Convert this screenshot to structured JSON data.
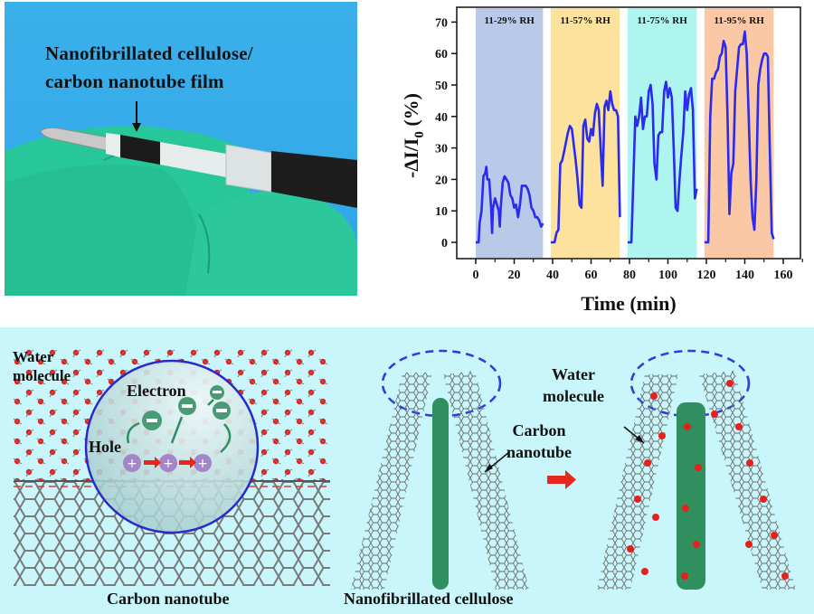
{
  "photo": {
    "label_line1": "Nanofibrillated cellulose/",
    "label_line2": "carbon nanotube film",
    "arrow_icon": "down-arrow-icon"
  },
  "chart_data": {
    "type": "line",
    "title": "",
    "xlabel": "Time (min)",
    "ylabel": "-ΔI/I0 (%)",
    "ylabel_main": "-ΔI/I",
    "ylabel_sub": "0",
    "ylabel_unit": " (%)",
    "xlim": [
      -5,
      165
    ],
    "ylim": [
      -5,
      73
    ],
    "xticks": [
      0,
      20,
      40,
      60,
      80,
      100,
      120,
      140,
      160
    ],
    "yticks": [
      0,
      10,
      20,
      30,
      40,
      50,
      60,
      70
    ],
    "grid": false,
    "line_color": "#2a2af0",
    "bands": [
      {
        "label": "11-29% RH",
        "x0": 0,
        "x1": 35,
        "color": "#b9c9e8"
      },
      {
        "label": "11-57% RH",
        "x0": 39,
        "x1": 75,
        "color": "#fde29d"
      },
      {
        "label": "11-75% RH",
        "x0": 79,
        "x1": 115,
        "color": "#aef4ef"
      },
      {
        "label": "11-95% RH",
        "x0": 119,
        "x1": 155,
        "color": "#fbc8a5"
      }
    ],
    "series": [
      {
        "name": "11-29% RH",
        "x": [
          0,
          1.5,
          2,
          3,
          4,
          5,
          5.5,
          6,
          7,
          8,
          8.5,
          9,
          10,
          11,
          12,
          12.5,
          13,
          14,
          15,
          16,
          17,
          18,
          19,
          20,
          21,
          22,
          23,
          24,
          25,
          26,
          27,
          28,
          29,
          30,
          31,
          32,
          33,
          34,
          35
        ],
        "y": [
          0,
          0,
          6,
          10,
          21,
          22,
          24,
          20,
          20,
          11,
          3,
          11,
          14,
          12,
          10,
          5,
          11,
          19,
          21,
          20,
          19,
          15,
          14,
          11,
          12,
          8,
          12,
          18,
          18,
          18,
          17,
          15,
          11,
          10,
          8,
          8,
          7,
          5,
          6
        ]
      },
      {
        "name": "11-57% RH",
        "x": [
          39,
          41,
          42,
          43,
          44,
          45,
          46,
          47,
          48,
          49,
          50,
          51,
          52,
          53,
          54,
          55,
          56,
          57,
          58,
          59,
          60,
          61,
          62,
          63,
          64,
          65,
          66,
          67,
          68,
          69,
          70,
          71,
          72,
          73,
          74,
          75
        ],
        "y": [
          0,
          0,
          3,
          4,
          25,
          26,
          29,
          32,
          35,
          37,
          36,
          31,
          26,
          20,
          12,
          11,
          37,
          39,
          33,
          32,
          36,
          34,
          41,
          44,
          42,
          30,
          18,
          43,
          45,
          42,
          48,
          44,
          42,
          42,
          40,
          8
        ]
      },
      {
        "name": "11-75% RH",
        "x": [
          79,
          81,
          82,
          83,
          84,
          85,
          86,
          87,
          88,
          89,
          90,
          91,
          92,
          93,
          94,
          95,
          96,
          97,
          98,
          99,
          100,
          101,
          102,
          103,
          104,
          105,
          106,
          107,
          108,
          109,
          110,
          111,
          112,
          113,
          114,
          115
        ],
        "y": [
          0,
          0,
          20,
          40,
          37,
          40,
          46,
          36,
          40,
          40,
          48,
          50,
          44,
          25,
          20,
          34,
          35,
          35,
          48,
          51,
          46,
          49,
          46,
          30,
          11,
          10,
          20,
          28,
          35,
          48,
          42,
          47,
          49,
          42,
          14,
          17
        ]
      },
      {
        "name": "11-95% RH",
        "x": [
          119,
          121,
          122,
          123,
          124,
          125,
          126,
          127,
          128,
          129,
          130,
          131,
          132,
          133,
          134,
          135,
          136,
          137,
          138,
          139,
          140,
          141,
          142,
          143,
          144,
          145,
          146,
          147,
          148,
          149,
          150,
          151,
          152,
          153,
          154,
          155
        ],
        "y": [
          0,
          0,
          40,
          52,
          52,
          54,
          55,
          59,
          60,
          64,
          62,
          40,
          9,
          22,
          25,
          48,
          55,
          62,
          63,
          63,
          67,
          60,
          40,
          20,
          8,
          4,
          20,
          50,
          55,
          58,
          60,
          60,
          59,
          30,
          3,
          1
        ]
      }
    ]
  },
  "bottom_left": {
    "water_label_line1": "Water",
    "water_label_line2": "molecule",
    "electron_label": "Electron",
    "hole_label": "Hole",
    "caption": "Carbon nanotube",
    "electron_symbol": "−",
    "hole_symbol": "+"
  },
  "bottom_right": {
    "carbon_label_line1": "Carbon",
    "carbon_label_line2": "nanotube",
    "water_label_line1": "Water",
    "water_label_line2": "molecule",
    "caption": "Nanofibrillated cellulose",
    "transition_arrow_icon": "right-arrow-icon"
  }
}
